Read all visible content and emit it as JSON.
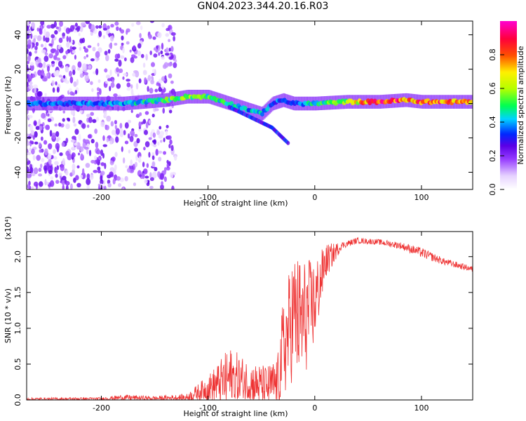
{
  "title": "GN04.2023.344.20.16.R03",
  "chart_data": [
    {
      "type": "heatmap",
      "xlabel": "Height of straight line (km)",
      "ylabel": "Frequency (Hz)",
      "xlim": [
        -270,
        148
      ],
      "ylim": [
        -50,
        48
      ],
      "xticks": [
        -200,
        -100,
        0,
        100
      ],
      "yticks": [
        40,
        20,
        0,
        -20,
        -40
      ],
      "colorbar": {
        "label": "Normalized spectral amplitude",
        "range": [
          0,
          1
        ],
        "ticks": [
          "0.0",
          "0.2",
          "0.4",
          "0.6",
          "0.8"
        ],
        "tick_values": [
          0,
          0.2,
          0.4,
          0.6,
          0.8
        ],
        "colors": [
          "#ffffff",
          "#e0c8ff",
          "#a040ff",
          "#6000e0",
          "#0020ff",
          "#00d0ff",
          "#00ff40",
          "#ffff00",
          "#ff2000",
          "#ff00c0"
        ]
      },
      "band": {
        "x": [
          -270,
          -220,
          -180,
          -140,
          -120,
          -100,
          -90,
          -80,
          -70,
          -60,
          -50,
          -40,
          -30,
          -20,
          -10,
          0,
          30,
          60,
          85,
          100,
          148
        ],
        "y": [
          0,
          0,
          0,
          2,
          4,
          4,
          2,
          0,
          -2,
          -4,
          -6,
          0,
          2,
          0,
          0,
          0,
          1,
          1,
          2,
          1,
          1
        ],
        "amplitude": [
          0.35,
          0.35,
          0.4,
          0.5,
          0.55,
          0.5,
          0.45,
          0.45,
          0.4,
          0.4,
          0.4,
          0.35,
          0.35,
          0.35,
          0.4,
          0.45,
          0.55,
          0.9,
          0.8,
          0.8,
          0.75
        ]
      },
      "dispersed_tail": {
        "x": [
          -80,
          -70,
          -60,
          -50,
          -40,
          -35,
          -30,
          -25
        ],
        "y": [
          -2,
          -5,
          -8,
          -11,
          -14,
          -17,
          -20,
          -23
        ]
      }
    },
    {
      "type": "line",
      "xlabel": "Height of straight line (km)",
      "ylabel": "SNR (10 * v/v)",
      "y_multiplier": "(x10⁴)",
      "xlim": [
        -270,
        148
      ],
      "ylim": [
        0,
        2.35
      ],
      "xticks": [
        -200,
        -100,
        0,
        100
      ],
      "yticks": [
        0,
        0.5,
        1.0,
        1.5,
        2.0
      ],
      "ytick_labels": [
        "0.0",
        "0.5",
        "1.0",
        "1.5",
        "2.0"
      ],
      "color": "#ee3333",
      "envelope": {
        "x": [
          -270,
          -200,
          -180,
          -150,
          -120,
          -100,
          -90,
          -80,
          -60,
          -45,
          -35,
          -30,
          -20,
          -12,
          0,
          10,
          25,
          40,
          60,
          80,
          100,
          120,
          148
        ],
        "mean": [
          0.01,
          0.015,
          0.03,
          0.02,
          0.03,
          0.15,
          0.2,
          0.25,
          0.2,
          0.15,
          0.2,
          0.6,
          1.1,
          1.0,
          1.3,
          1.9,
          2.15,
          2.22,
          2.2,
          2.15,
          2.05,
          1.93,
          1.82
        ],
        "amplitude": [
          0.02,
          0.02,
          0.04,
          0.03,
          0.05,
          0.18,
          0.3,
          0.45,
          0.3,
          0.3,
          0.35,
          0.7,
          0.9,
          0.9,
          0.6,
          0.25,
          0.05,
          0.04,
          0.04,
          0.05,
          0.07,
          0.05,
          0.04
        ]
      }
    }
  ]
}
